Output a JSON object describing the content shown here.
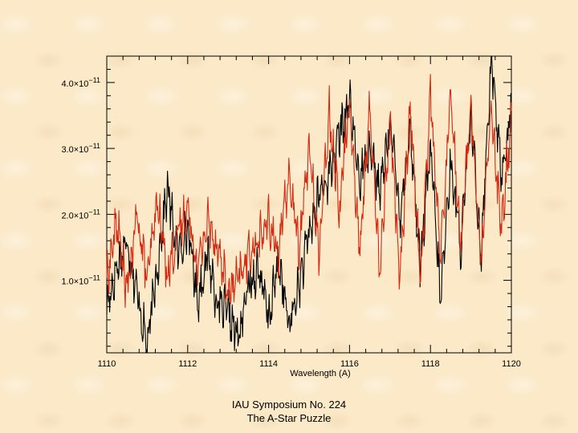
{
  "chart_data": {
    "type": "line",
    "title": "",
    "xlabel": "Wavelength (A)",
    "ylabel": "",
    "xlim": [
      1110,
      1120
    ],
    "ylim": [
      -1e-12,
      4.4e-11
    ],
    "x_ticks": [
      1110,
      1112,
      1114,
      1116,
      1118,
      1120
    ],
    "x_tick_labels": [
      "1110",
      "1112",
      "1114",
      "1116",
      "1118",
      "1120"
    ],
    "y_ticks": [
      1e-11,
      2e-11,
      3e-11,
      4e-11
    ],
    "y_tick_labels": [
      {
        "mantissa": "1.0×10",
        "exponent": "−11"
      },
      {
        "mantissa": "2.0×10",
        "exponent": "−11"
      },
      {
        "mantissa": "3.0×10",
        "exponent": "−11"
      },
      {
        "mantissa": "4.0×10",
        "exponent": "−11"
      }
    ],
    "grid": false,
    "series": [
      {
        "name": "black spectrum",
        "color": "#000000",
        "x": [
          1110.0,
          1110.25,
          1110.5,
          1110.75,
          1111.0,
          1111.25,
          1111.5,
          1111.75,
          1112.0,
          1112.25,
          1112.5,
          1112.75,
          1113.0,
          1113.25,
          1113.5,
          1113.75,
          1114.0,
          1114.25,
          1114.5,
          1114.75,
          1115.0,
          1115.25,
          1115.5,
          1115.75,
          1116.0,
          1116.25,
          1116.5,
          1116.75,
          1117.0,
          1117.25,
          1117.5,
          1117.75,
          1118.0,
          1118.25,
          1118.5,
          1118.75,
          1119.0,
          1119.25,
          1119.5,
          1119.75,
          1120.0
        ],
        "y": [
          6e-12,
          1.2e-11,
          1.6e-11,
          8e-12,
          0.0,
          1.2e-11,
          2.4e-11,
          1.4e-11,
          1.8e-11,
          7e-12,
          1.4e-11,
          6e-12,
          5e-12,
          1e-12,
          9e-12,
          1.2e-11,
          4e-12,
          1.3e-11,
          3e-12,
          9e-12,
          1.7e-11,
          2.3e-11,
          2.6e-11,
          3.2e-11,
          3.7e-11,
          2.5e-11,
          3.1e-11,
          2.3e-11,
          3.4e-11,
          2e-11,
          3.3e-11,
          1.2e-11,
          3e-11,
          7e-12,
          2.8e-11,
          1.5e-11,
          3.5e-11,
          1.4e-11,
          4.4e-11,
          2.6e-11,
          3.6e-11
        ]
      },
      {
        "name": "red spectrum",
        "color": "#d42a12",
        "x": [
          1110.0,
          1110.25,
          1110.5,
          1110.75,
          1111.0,
          1111.25,
          1111.5,
          1111.75,
          1112.0,
          1112.25,
          1112.5,
          1112.75,
          1113.0,
          1113.25,
          1113.5,
          1113.75,
          1114.0,
          1114.25,
          1114.5,
          1114.75,
          1115.0,
          1115.25,
          1115.5,
          1115.75,
          1116.0,
          1116.25,
          1116.5,
          1116.75,
          1117.0,
          1117.25,
          1117.5,
          1117.75,
          1118.0,
          1118.25,
          1118.5,
          1118.75,
          1119.0,
          1119.25,
          1119.5,
          1119.75,
          1120.0
        ],
        "y": [
          1e-11,
          1.9e-11,
          8e-12,
          2e-11,
          1e-11,
          2.2e-11,
          1.1e-11,
          1.7e-11,
          2.1e-11,
          1.2e-11,
          1.9e-11,
          1.5e-11,
          8e-12,
          1e-11,
          1.4e-11,
          1.6e-11,
          1.9e-11,
          1.4e-11,
          2.6e-11,
          1.5e-11,
          3e-11,
          1.4e-11,
          3.6e-11,
          2.1e-11,
          3.8e-11,
          1.4e-11,
          3.6e-11,
          1.1e-11,
          3.5e-11,
          1e-11,
          3.7e-11,
          1e-11,
          3.8e-11,
          1.3e-11,
          3.9e-11,
          1.5e-11,
          3.7e-11,
          1.2e-11,
          3.6e-11,
          1.7e-11,
          3.5e-11
        ]
      }
    ]
  },
  "caption": {
    "line1": "IAU Symposium No. 224",
    "line2": "The A-Star Puzzle"
  }
}
